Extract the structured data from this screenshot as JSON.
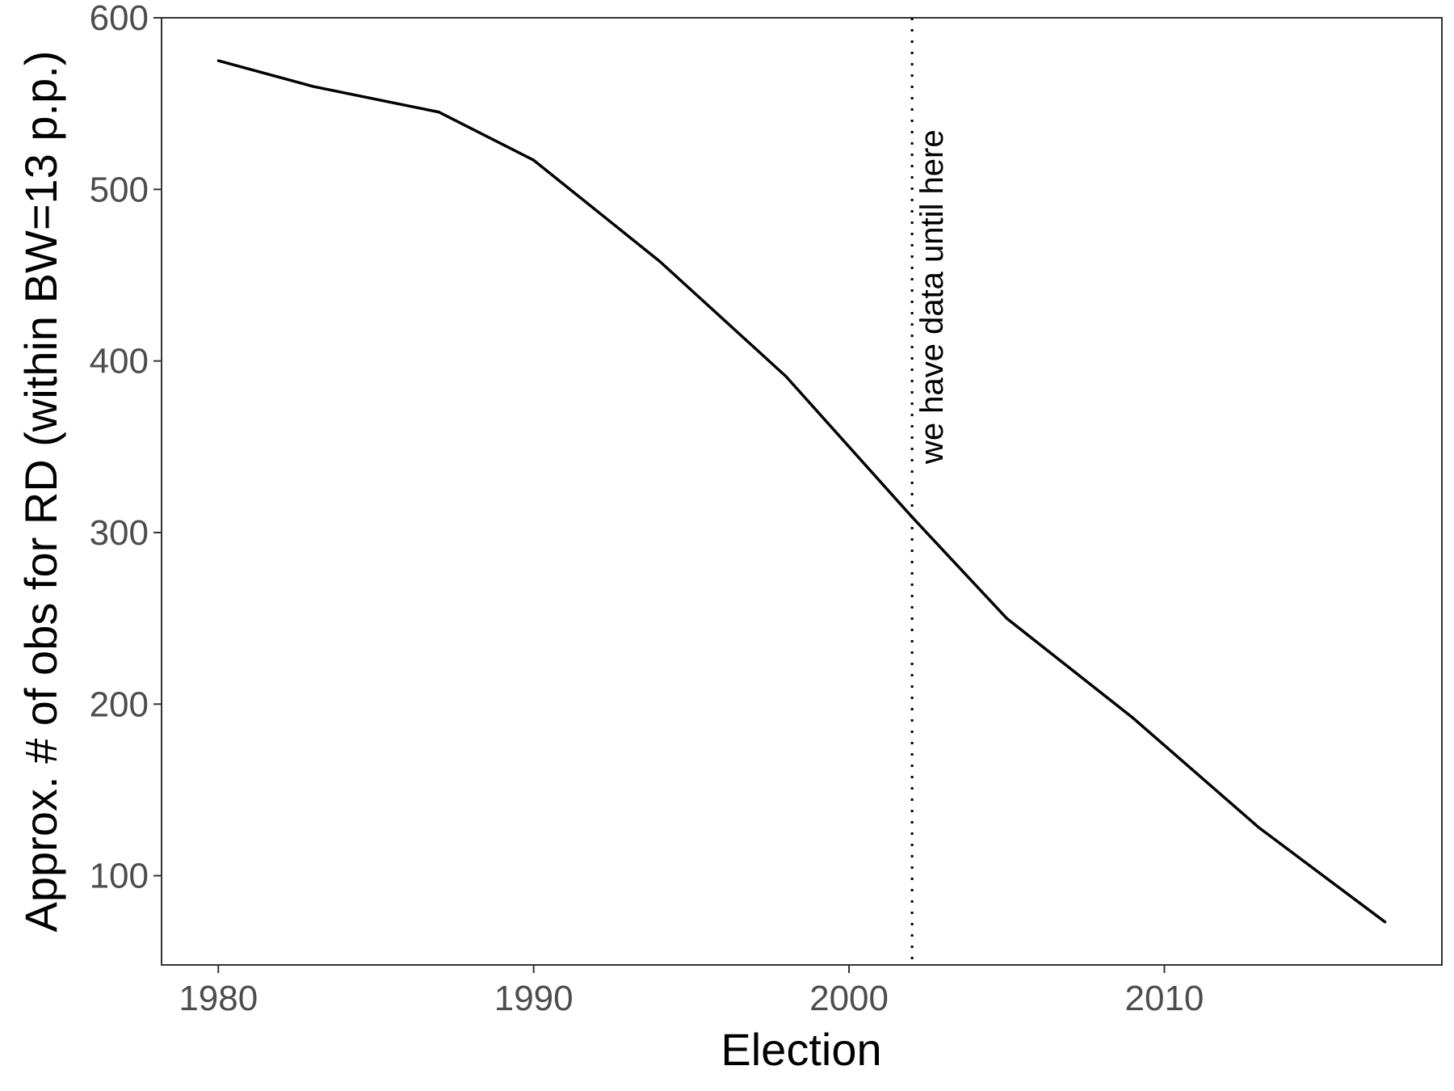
{
  "chart_data": {
    "type": "line",
    "title": "",
    "xlabel": "Election",
    "ylabel": "Approx. # of obs for RD (within BW=13 p.p.)",
    "xlim": [
      1978.2,
      2018.8
    ],
    "ylim": [
      48,
      600
    ],
    "xticks": [
      1980,
      1990,
      2000,
      2010
    ],
    "yticks": [
      100,
      200,
      300,
      400,
      500,
      600
    ],
    "grid": false,
    "legend": "none",
    "series": [
      {
        "x": [
          1980,
          1983,
          1987,
          1990,
          1994,
          1998,
          2002,
          2005,
          2009,
          2013,
          2017
        ],
        "values": [
          575,
          560,
          545,
          517,
          458,
          391,
          309,
          250,
          192,
          128,
          73
        ],
        "color": "#000000"
      }
    ],
    "reference_line": {
      "x": 2002,
      "style": "dotted",
      "label": "we have data until here"
    }
  }
}
